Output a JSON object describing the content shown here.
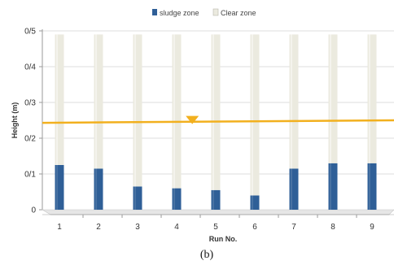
{
  "chart_data": {
    "type": "bar",
    "stacked": true,
    "categories": [
      "1",
      "2",
      "3",
      "4",
      "5",
      "6",
      "7",
      "8",
      "9"
    ],
    "series": [
      {
        "name": "sludge zone",
        "color": "#2f5f97",
        "values": [
          0.125,
          0.115,
          0.065,
          0.06,
          0.055,
          0.04,
          0.115,
          0.13,
          0.13
        ]
      },
      {
        "name": "Clear zone",
        "color": "#ebeadf",
        "values": [
          0.365,
          0.375,
          0.425,
          0.43,
          0.435,
          0.45,
          0.375,
          0.36,
          0.36
        ]
      }
    ],
    "ylim": [
      0,
      0.5
    ],
    "yticks": [
      0,
      0.1,
      0.2,
      0.3,
      0.4,
      0.5
    ],
    "ytick_labels": [
      "0",
      "0/1",
      "0/2",
      "0/3",
      "0/4",
      "0/5"
    ],
    "xlabel": "Run No.",
    "ylabel": "Height (m)",
    "legend_position": "top",
    "reference_line": {
      "y_start": 0.243,
      "y_end": 0.25,
      "color": "#f2b01e",
      "marker": "triangle-down",
      "marker_x": 4.4
    },
    "caption": "(b)"
  }
}
